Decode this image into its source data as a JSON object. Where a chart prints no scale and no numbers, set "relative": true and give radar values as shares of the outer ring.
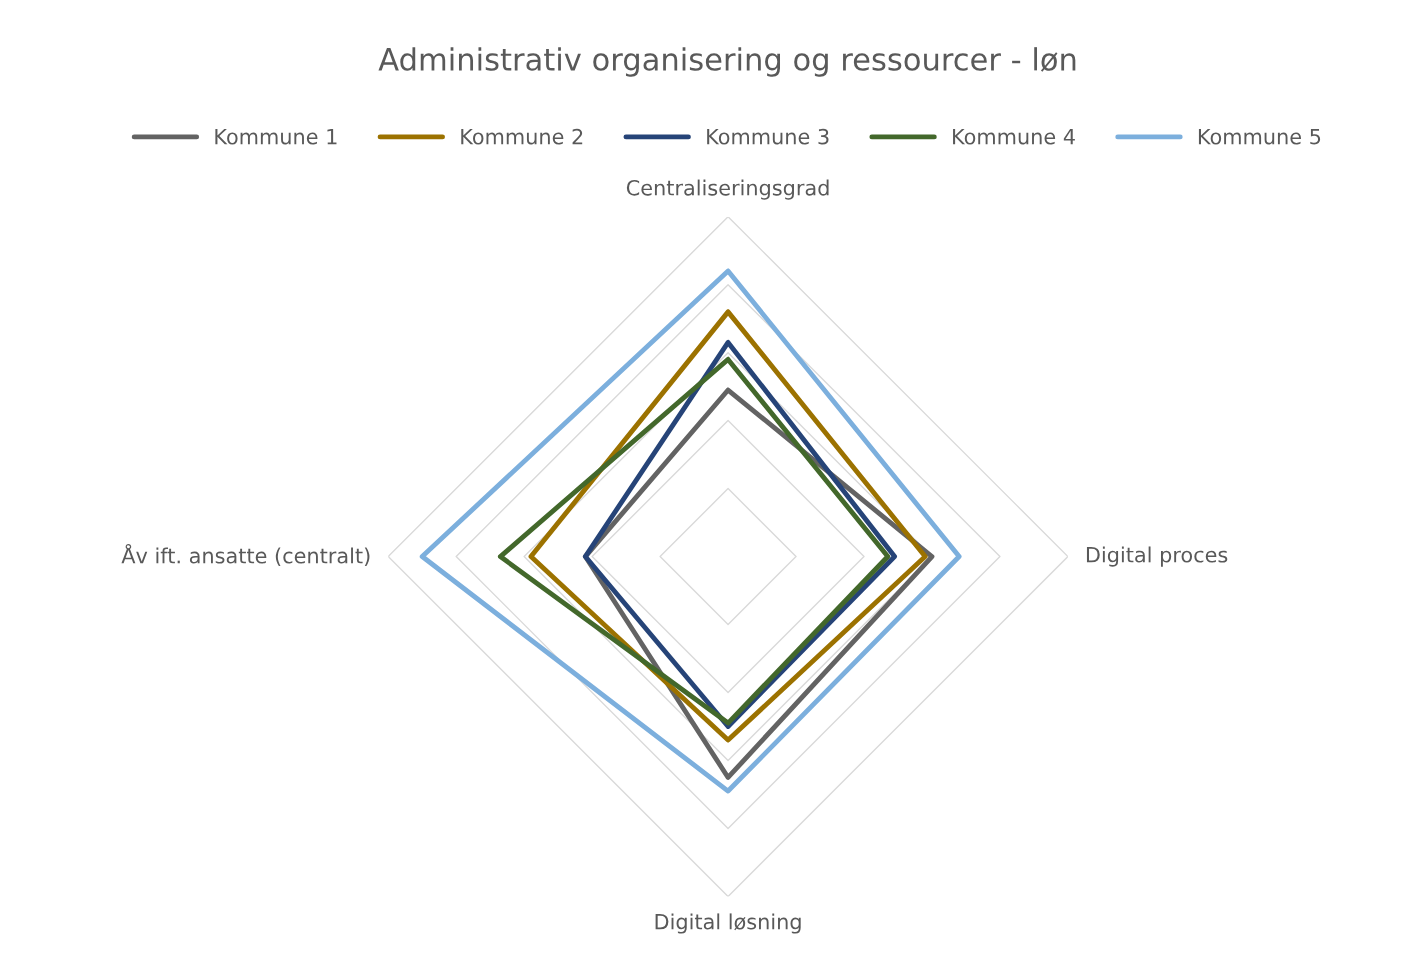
{
  "chart_data": {
    "type": "radar",
    "title": "Administrativ organisering og ressourcer - løn",
    "relative": true,
    "grid": true,
    "legend": "top",
    "line_style": "solid",
    "marker": "none",
    "categories": [
      "Centraliseringsgrad",
      "Digital proces",
      "Digital løsning",
      "Åv ift. ansatte (centralt)"
    ],
    "series": [
      {
        "name": "Kommune 1",
        "color": "#636363",
        "values": [
          0.49,
          0.6,
          0.65,
          0.42
        ]
      },
      {
        "name": "Kommune 2",
        "color": "#9c7200",
        "values": [
          0.72,
          0.58,
          0.54,
          0.58
        ]
      },
      {
        "name": "Kommune 3",
        "color": "#264478",
        "values": [
          0.63,
          0.49,
          0.5,
          0.42
        ]
      },
      {
        "name": "Kommune 4",
        "color": "#43682b",
        "values": [
          0.58,
          0.47,
          0.49,
          0.67
        ]
      },
      {
        "name": "Kommune 5",
        "color": "#7cafdd",
        "values": [
          0.84,
          0.68,
          0.69,
          0.9
        ]
      }
    ]
  }
}
